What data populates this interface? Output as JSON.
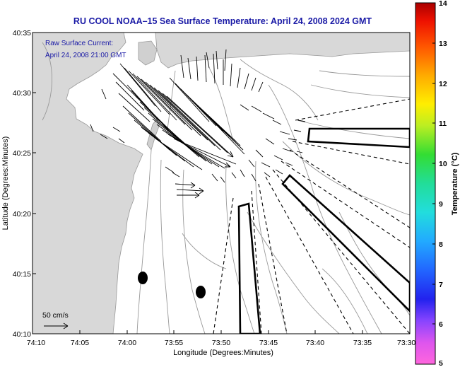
{
  "title": "RU COOL  NOAA–15  Sea Surface Temperature:  April 24, 2008 2024 GMT",
  "annotation": {
    "line1": "Raw Surface Current:",
    "line2": "April 24, 2008 21:00 GMT"
  },
  "axes": {
    "xlabel": "Longitude (Degrees:Minutes)",
    "ylabel": "Latitude (Degrees:Minutes)",
    "xticks": [
      "74:10",
      "74:05",
      "74:00",
      "73:55",
      "73:50",
      "73:45",
      "73:40",
      "73:35",
      "73:30"
    ],
    "yticks": [
      "40:35",
      "40:30",
      "40:25",
      "40:20",
      "40:15",
      "40:10"
    ]
  },
  "scale_label": "50 cm/s",
  "colorbar": {
    "label": "Temperature (°C)",
    "ticks": [
      "14",
      "13",
      "12",
      "11",
      "10",
      "9",
      "8",
      "7",
      "6",
      "5"
    ],
    "min": 5,
    "max": 14
  },
  "colors": {
    "title": "#1a1aa6",
    "annotation": "#1a1aa6",
    "frame": "#000000",
    "land": "#aaaaaa"
  }
}
